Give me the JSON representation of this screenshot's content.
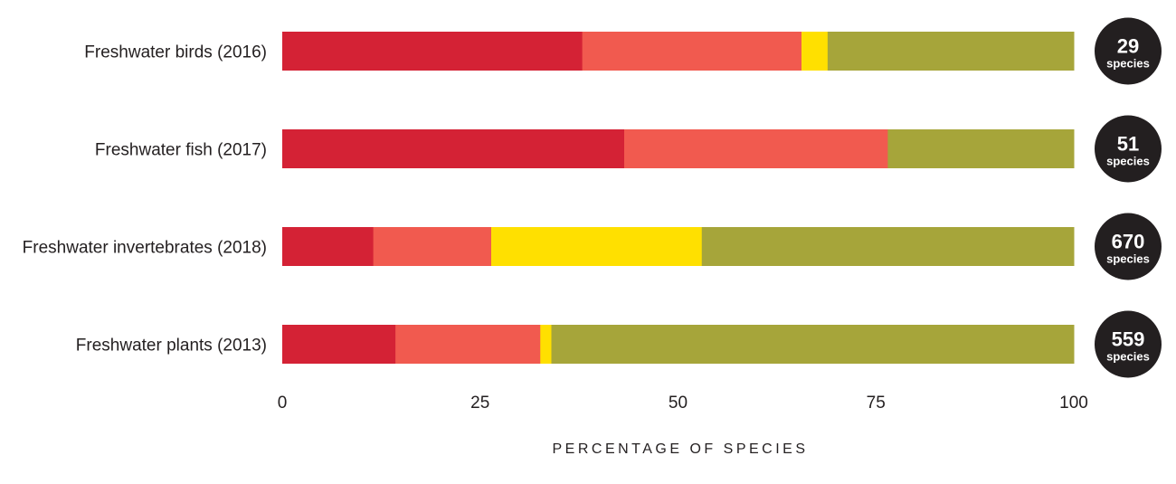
{
  "chart_data": {
    "type": "bar",
    "orientation": "horizontal",
    "stacked": true,
    "categories": [
      "Freshwater birds (2016)",
      "Freshwater fish (2017)",
      "Freshwater invertebrates (2018)",
      "Freshwater plants (2013)"
    ],
    "series": [
      {
        "name": "segment-1",
        "color": "#d42235",
        "values": [
          37.9,
          43.2,
          11.5,
          14.3
        ]
      },
      {
        "name": "segment-2",
        "color": "#f15a4f",
        "values": [
          27.7,
          33.3,
          14.9,
          18.3
        ]
      },
      {
        "name": "segment-3",
        "color": "#ffe000",
        "values": [
          3.3,
          0,
          26.6,
          1.4
        ]
      },
      {
        "name": "segment-4",
        "color": "#a6a53a",
        "values": [
          31.1,
          23.5,
          47.0,
          66.0
        ]
      }
    ],
    "species_counts": [
      {
        "number": "29",
        "unit": "species"
      },
      {
        "number": "51",
        "unit": "species"
      },
      {
        "number": "670",
        "unit": "species"
      },
      {
        "number": "559",
        "unit": "species"
      }
    ],
    "xlabel": "PERCENTAGE OF SPECIES",
    "xlim": [
      0,
      100
    ],
    "xticks": [
      "0",
      "25",
      "50",
      "75",
      "100"
    ],
    "grid": false
  }
}
